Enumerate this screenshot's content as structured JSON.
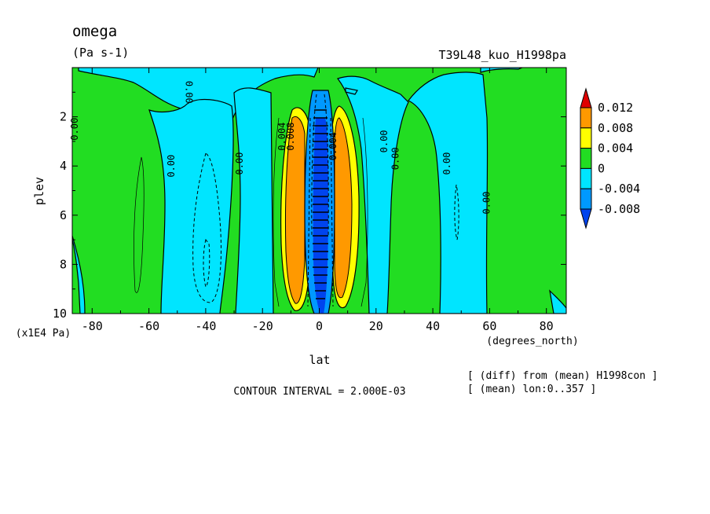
{
  "header": {
    "title": "omega",
    "units": "(Pa s-1)",
    "run_name": "T39L48_kuo_H1998pa"
  },
  "footer": {
    "contour_interval": "CONTOUR INTERVAL = 2.000E-03",
    "note_diff": "[ (diff) from (mean) H1998con ]",
    "note_mean": "[ (mean) lon:0..357 ]"
  },
  "chart_data": {
    "type": "heatmap",
    "title": "omega",
    "units": "(Pa s-1)",
    "xlabel": "lat",
    "xunits": "(degrees_north)",
    "ylabel": "plev",
    "yunits": "(x1E4 Pa)",
    "xlim": [
      -87,
      87
    ],
    "ylim": [
      10,
      0
    ],
    "xticks": [
      -80,
      -60,
      -40,
      -20,
      0,
      20,
      40,
      60,
      80
    ],
    "yticks": [
      2,
      4,
      6,
      8,
      10
    ],
    "colorbar": {
      "levels": [
        "0.012",
        "0.008",
        "0.004",
        "0",
        "-0.004",
        "-0.008"
      ],
      "colors": [
        "#e00000",
        "#ff9900",
        "#ffff00",
        "#22dd22",
        "#00e5ff",
        "#0099ff",
        "#0044ee"
      ]
    },
    "contour_labels": [
      {
        "text": "0.00",
        "x": -85,
        "y": 2.5,
        "rot": -90
      },
      {
        "text": "0.00",
        "x": -47,
        "y": 1.0,
        "rot": 90
      },
      {
        "text": "0.00",
        "x": -51,
        "y": 4.0,
        "rot": -90
      },
      {
        "text": "0.00",
        "x": -27,
        "y": 3.9,
        "rot": -90
      },
      {
        "text": "0.004",
        "x": -12,
        "y": 2.8,
        "rot": -90
      },
      {
        "text": "0.008",
        "x": -9,
        "y": 2.8,
        "rot": -90
      },
      {
        "text": "0.00",
        "x": 24,
        "y": 3.0,
        "rot": -90
      },
      {
        "text": "0.00",
        "x": 28,
        "y": 3.7,
        "rot": -90
      },
      {
        "text": "0.00",
        "x": 46,
        "y": 3.9,
        "rot": -90
      },
      {
        "text": "0.00",
        "x": 60,
        "y": 5.5,
        "rot": -90
      },
      {
        "text": "0.004",
        "x": 6,
        "y": 3.2,
        "rot": -90
      }
    ]
  }
}
